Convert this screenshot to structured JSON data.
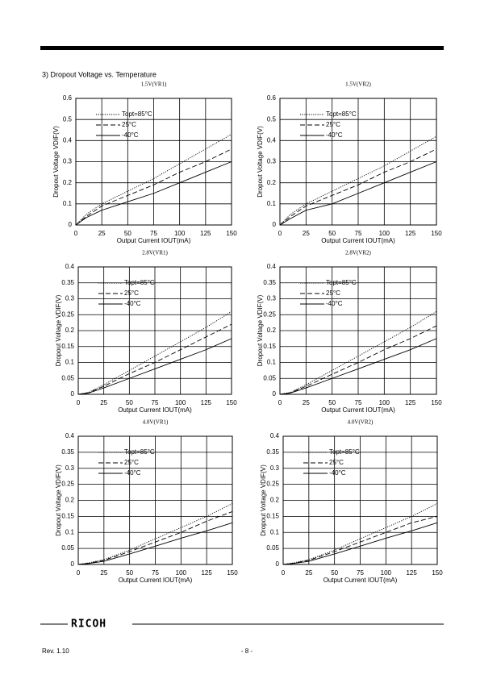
{
  "section_title": "3) Dropout Voltage vs. Temperature",
  "footer": {
    "logo": "RICOH",
    "revision": "Rev. 1.10",
    "page": "- 8 -"
  },
  "chart_data": [
    {
      "type": "line",
      "title": "1.5V(VR1)",
      "x_label": "Output Current IOUT(mA)",
      "y_label": "Dropout Voltage VDIF(V)",
      "x": [
        0,
        10,
        25,
        50,
        75,
        100,
        125,
        150
      ],
      "xlim": [
        0,
        150
      ],
      "xticks": [
        0,
        25,
        50,
        75,
        100,
        125,
        150
      ],
      "ylim": [
        0,
        0.6
      ],
      "yticks": [
        0,
        0.1,
        0.2,
        0.3,
        0.4,
        0.5,
        0.6
      ],
      "grid": true,
      "legend": "upper left",
      "series": [
        {
          "name": "Topt=85°C",
          "color": "#000000",
          "dash": "dotted",
          "values": [
            0,
            0.05,
            0.1,
            0.16,
            0.22,
            0.29,
            0.36,
            0.43
          ]
        },
        {
          "name": "25°C",
          "color": "#000000",
          "dash": "dashed",
          "values": [
            0,
            0.04,
            0.09,
            0.14,
            0.19,
            0.25,
            0.3,
            0.36
          ]
        },
        {
          "name": "-40°C",
          "color": "#000000",
          "dash": "solid",
          "values": [
            0,
            0.035,
            0.07,
            0.11,
            0.15,
            0.2,
            0.25,
            0.3
          ]
        }
      ]
    },
    {
      "type": "line",
      "title": "1.5V(VR2)",
      "x_label": "Output Current IOUT(mA)",
      "y_label": "Dropout Voltage VDIF(V)",
      "x": [
        0,
        10,
        25,
        50,
        75,
        100,
        125,
        150
      ],
      "xlim": [
        0,
        150
      ],
      "xticks": [
        0,
        25,
        50,
        75,
        100,
        125,
        150
      ],
      "ylim": [
        0,
        0.6
      ],
      "yticks": [
        0,
        0.1,
        0.2,
        0.3,
        0.4,
        0.5,
        0.6
      ],
      "grid": true,
      "legend": "upper left",
      "series": [
        {
          "name": "Topt=85°C",
          "color": "#000000",
          "dash": "dotted",
          "values": [
            0,
            0.05,
            0.1,
            0.16,
            0.22,
            0.28,
            0.35,
            0.42
          ]
        },
        {
          "name": "25°C",
          "color": "#000000",
          "dash": "dashed",
          "values": [
            0,
            0.04,
            0.09,
            0.14,
            0.19,
            0.25,
            0.3,
            0.36
          ]
        },
        {
          "name": "-40°C",
          "color": "#000000",
          "dash": "solid",
          "values": [
            0,
            0.03,
            0.07,
            0.1,
            0.15,
            0.2,
            0.25,
            0.3
          ]
        }
      ]
    },
    {
      "type": "line",
      "title": "2.8V(VR1)",
      "x_label": "Output Current IOUT(mA)",
      "y_label": "Dropout Voltage VDIF(V)",
      "x": [
        0,
        10,
        25,
        50,
        75,
        100,
        125,
        150
      ],
      "xlim": [
        0,
        150
      ],
      "xticks": [
        0,
        25,
        50,
        75,
        100,
        125,
        150
      ],
      "ylim": [
        0,
        0.4
      ],
      "yticks": [
        0,
        0.05,
        0.1,
        0.15,
        0.2,
        0.25,
        0.3,
        0.35,
        0.4
      ],
      "grid": true,
      "legend": "upper left",
      "series": [
        {
          "name": "Topt=85°C",
          "color": "#000000",
          "dash": "dotted",
          "values": [
            0,
            0.006,
            0.03,
            0.075,
            0.12,
            0.165,
            0.21,
            0.26
          ]
        },
        {
          "name": "25°C",
          "color": "#000000",
          "dash": "dashed",
          "values": [
            0,
            0.005,
            0.025,
            0.065,
            0.1,
            0.14,
            0.18,
            0.22
          ]
        },
        {
          "name": "-40°C",
          "color": "#000000",
          "dash": "solid",
          "values": [
            0,
            0.004,
            0.02,
            0.05,
            0.08,
            0.11,
            0.14,
            0.175
          ]
        }
      ]
    },
    {
      "type": "line",
      "title": "2.8V(VR2)",
      "x_label": "Output Current IOUT(mA)",
      "y_label": "Dropout Voltage VDIF(V)",
      "x": [
        0,
        10,
        25,
        50,
        75,
        100,
        125,
        150
      ],
      "xlim": [
        0,
        150
      ],
      "xticks": [
        0,
        25,
        50,
        75,
        100,
        125,
        150
      ],
      "ylim": [
        0,
        0.4
      ],
      "yticks": [
        0,
        0.05,
        0.1,
        0.15,
        0.2,
        0.25,
        0.3,
        0.35,
        0.4
      ],
      "grid": true,
      "legend": "upper left",
      "series": [
        {
          "name": "Topt=85°C",
          "color": "#000000",
          "dash": "dotted",
          "values": [
            0,
            0.006,
            0.03,
            0.075,
            0.12,
            0.165,
            0.21,
            0.26
          ]
        },
        {
          "name": "25°C",
          "color": "#000000",
          "dash": "dashed",
          "values": [
            0,
            0.005,
            0.025,
            0.063,
            0.1,
            0.14,
            0.175,
            0.215
          ]
        },
        {
          "name": "-40°C",
          "color": "#000000",
          "dash": "solid",
          "values": [
            0,
            0.004,
            0.02,
            0.05,
            0.08,
            0.11,
            0.14,
            0.175
          ]
        }
      ]
    },
    {
      "type": "line",
      "title": "4.0V(VR1)",
      "x_label": "Output Current IOUT(mA)",
      "y_label": "Dropout Voltage VDIF(V)",
      "x": [
        0,
        10,
        25,
        50,
        75,
        100,
        125,
        150
      ],
      "xlim": [
        0,
        150
      ],
      "xticks": [
        0,
        25,
        50,
        75,
        100,
        125,
        150
      ],
      "ylim": [
        0,
        0.4
      ],
      "yticks": [
        0,
        0.05,
        0.1,
        0.15,
        0.2,
        0.25,
        0.3,
        0.35,
        0.4
      ],
      "grid": true,
      "legend": "upper left",
      "series": [
        {
          "name": "Topt=85°C",
          "color": "#000000",
          "dash": "dotted",
          "values": [
            0,
            0.005,
            0.015,
            0.045,
            0.08,
            0.115,
            0.15,
            0.19
          ]
        },
        {
          "name": "25°C",
          "color": "#000000",
          "dash": "dashed",
          "values": [
            0,
            0.004,
            0.013,
            0.04,
            0.07,
            0.1,
            0.135,
            0.165
          ]
        },
        {
          "name": "-40°C",
          "color": "#000000",
          "dash": "solid",
          "values": [
            0,
            0.003,
            0.01,
            0.033,
            0.057,
            0.082,
            0.105,
            0.13
          ]
        }
      ]
    },
    {
      "type": "line",
      "title": "4.0V(VR2)",
      "x_label": "Output Current IOUT(mA)",
      "y_label": "Dropout Voltage VDIF(V)",
      "x": [
        0,
        10,
        25,
        50,
        75,
        100,
        125,
        150
      ],
      "xlim": [
        0,
        150
      ],
      "xticks": [
        0,
        25,
        50,
        75,
        100,
        125,
        150
      ],
      "ylim": [
        0,
        0.4
      ],
      "yticks": [
        0,
        0.05,
        0.1,
        0.15,
        0.2,
        0.25,
        0.3,
        0.35,
        0.4
      ],
      "grid": true,
      "legend": "upper left",
      "series": [
        {
          "name": "Topt=85°C",
          "color": "#000000",
          "dash": "dotted",
          "values": [
            0,
            0.005,
            0.015,
            0.045,
            0.08,
            0.115,
            0.15,
            0.19
          ]
        },
        {
          "name": "25°C",
          "color": "#000000",
          "dash": "dashed",
          "values": [
            0,
            0.004,
            0.013,
            0.04,
            0.07,
            0.1,
            0.13,
            0.15
          ]
        },
        {
          "name": "-40°C",
          "color": "#000000",
          "dash": "solid",
          "values": [
            0,
            0.003,
            0.01,
            0.033,
            0.057,
            0.082,
            0.105,
            0.13
          ]
        }
      ]
    }
  ]
}
